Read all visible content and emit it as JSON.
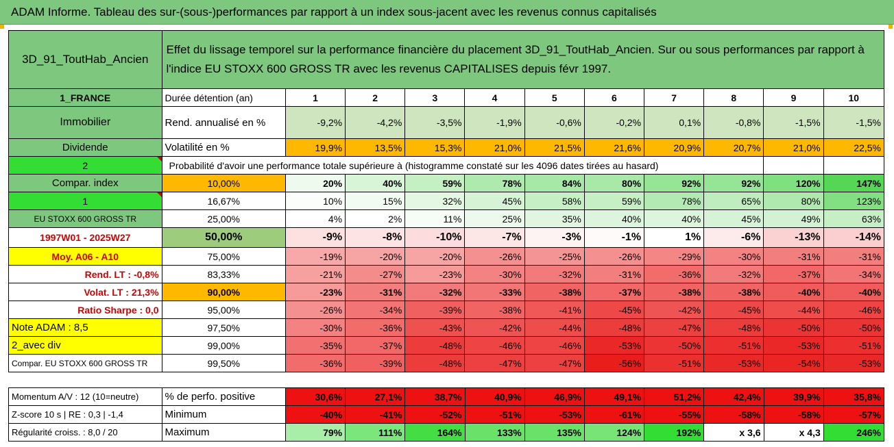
{
  "title": "ADAM Informe. Tableau des sur-(sous-)performances par rapport à un index sous-jacent avec les revenus connus capitalisés",
  "header": {
    "code": "3D_91_ToutHab_Ancien",
    "description": "Effet du lissage temporel sur la performance financière du placement 3D_91_ToutHab_Ancien. Sur ou sous performances par rapport à l'indice EU STOXX 600 GROSS TR avec les revenus CAPITALISES depuis févr 1997."
  },
  "left_labels": {
    "country": "1_FRANCE",
    "asset": "Immobilier",
    "dividend": "Dividende",
    "two": "2",
    "compar_index": "Compar. index",
    "one": "1",
    "index_name": "EU STOXX 600 GROSS TR",
    "period": "1997W01 - 2025W27",
    "moy": "Moy. A06 - A10",
    "rend_lt": "Rend. LT :    -0,8%",
    "volat_lt": "Volat. LT :    21,3%",
    "ratio_sharpe": "Ratio Sharpe :    0,0",
    "note_adam": "Note ADAM : 8,5",
    "avec_div": "2_avec div",
    "compar_name": "Compar. EU STOXX 600 GROSS TR"
  },
  "durations": {
    "label": "Durée détention (an)",
    "values": [
      "1",
      "2",
      "3",
      "4",
      "5",
      "6",
      "7",
      "8",
      "9",
      "10"
    ]
  },
  "rendement": {
    "label": "Rend. annualisé en %",
    "values": [
      "-9,2%",
      "-4,2%",
      "-3,5%",
      "-1,9%",
      "-0,6%",
      "-0,2%",
      "0,1%",
      "-0,8%",
      "-1,5%",
      "-1,5%"
    ]
  },
  "volatilite": {
    "label": "Volatilité en %",
    "values": [
      "19,9%",
      "13,5%",
      "15,3%",
      "21,0%",
      "21,5%",
      "21,6%",
      "20,9%",
      "20,7%",
      "21,0%",
      "22,5%"
    ]
  },
  "probability_caption": "Probabilité d'avoir une performance totale supérieure à (histogramme constaté sur les 4096 dates tirées au hasard)",
  "quantile_rows": [
    {
      "q": "10,00%",
      "values": [
        "20%",
        "40%",
        "59%",
        "78%",
        "84%",
        "80%",
        "92%",
        "92%",
        "120%",
        "147%"
      ],
      "colors": [
        "#eefaee",
        "#d8f5d8",
        "#c4f0c4",
        "#aeeaae",
        "#a6e8a6",
        "#a8e9a8",
        "#96e496",
        "#96e496",
        "#7ee07e",
        "#55d655"
      ]
    },
    {
      "q": "16,67%",
      "values": [
        "10%",
        "15%",
        "32%",
        "45%",
        "58%",
        "59%",
        "78%",
        "65%",
        "80%",
        "123%"
      ],
      "colors": [
        "#fbfdfb",
        "#f2fbf2",
        "#e3f7e3",
        "#d6f3d6",
        "#c6efc6",
        "#c6efc6",
        "#b3eab3",
        "#c0edc0",
        "#b0e9b0",
        "#82df82"
      ]
    },
    {
      "q": "25,00%",
      "values": [
        "4%",
        "2%",
        "11%",
        "25%",
        "35%",
        "40%",
        "40%",
        "45%",
        "49%",
        "63%"
      ],
      "colors": [
        "#ffffff",
        "#ffffff",
        "#f6fcf6",
        "#ecf9ec",
        "#e1f6e1",
        "#dcf5dc",
        "#dcf5dc",
        "#d7f3d7",
        "#d3f2d3",
        "#c6efc6"
      ]
    },
    {
      "q": "50,00%",
      "values": [
        "-9%",
        "-8%",
        "-10%",
        "-7%",
        "-3%",
        "-1%",
        "1%",
        "-6%",
        "-13%",
        "-14%"
      ],
      "colors": [
        "#fde0e0",
        "#fde3e3",
        "#fcdcdc",
        "#fde6e6",
        "#fef3f3",
        "#fffafa",
        "#ffffff",
        "#fdeaea",
        "#fbd2d2",
        "#fbcfcf"
      ]
    },
    {
      "q": "75,00%",
      "values": [
        "-19%",
        "-20%",
        "-20%",
        "-26%",
        "-25%",
        "-26%",
        "-29%",
        "-30%",
        "-31%",
        "-31%"
      ],
      "colors": [
        "#f7a8a8",
        "#f7a4a4",
        "#f7a4a4",
        "#f59090",
        "#f59494",
        "#f59090",
        "#f48686",
        "#f48282",
        "#f37e7e",
        "#f37e7e"
      ]
    },
    {
      "q": "83,33%",
      "values": [
        "-21%",
        "-27%",
        "-23%",
        "-30%",
        "-32%",
        "-31%",
        "-36%",
        "-32%",
        "-37%",
        "-34%"
      ],
      "colors": [
        "#f6a0a0",
        "#f58c8c",
        "#f69a9a",
        "#f48282",
        "#f37a7a",
        "#f37e7e",
        "#f26c6c",
        "#f37a7a",
        "#f26868",
        "#f27474"
      ]
    },
    {
      "q": "90,00%",
      "values": [
        "-23%",
        "-31%",
        "-32%",
        "-33%",
        "-38%",
        "-37%",
        "-38%",
        "-38%",
        "-40%",
        "-40%"
      ],
      "colors": [
        "#f69a9a",
        "#f37e7e",
        "#f37a7a",
        "#f27676",
        "#f16464",
        "#f26868",
        "#f16464",
        "#f16464",
        "#f05c5c",
        "#f05c5c"
      ]
    },
    {
      "q": "95,00%",
      "values": [
        "-26%",
        "-34%",
        "-39%",
        "-38%",
        "-41%",
        "-45%",
        "-42%",
        "-45%",
        "-44%",
        "-46%"
      ],
      "colors": [
        "#f59090",
        "#f27474",
        "#f06060",
        "#f16464",
        "#f05858",
        "#ee4848",
        "#ef5454",
        "#ee4848",
        "#ef4c4c",
        "#ee4444"
      ]
    },
    {
      "q": "97,50%",
      "values": [
        "-30%",
        "-36%",
        "-43%",
        "-42%",
        "-44%",
        "-48%",
        "-47%",
        "-48%",
        "-50%",
        "-50%"
      ],
      "colors": [
        "#f48282",
        "#f26c6c",
        "#ef5050",
        "#ef5454",
        "#ef4c4c",
        "#ed3c3c",
        "#ed4040",
        "#ed3c3c",
        "#ec3434",
        "#ec3434"
      ]
    },
    {
      "q": "99,00%",
      "values": [
        "-35%",
        "-37%",
        "-48%",
        "-46%",
        "-46%",
        "-53%",
        "-50%",
        "-51%",
        "-53%",
        "-51%"
      ],
      "colors": [
        "#f27070",
        "#f26868",
        "#ed3c3c",
        "#ee4444",
        "#ee4444",
        "#eb2828",
        "#ec3434",
        "#ec3030",
        "#eb2828",
        "#ec3030"
      ]
    },
    {
      "q": "99,50%",
      "values": [
        "-36%",
        "-39%",
        "-48%",
        "-47%",
        "-47%",
        "-56%",
        "-51%",
        "-53%",
        "-54%",
        "-53%"
      ],
      "colors": [
        "#f26c6c",
        "#f06060",
        "#ed3c3c",
        "#ed4040",
        "#ed4040",
        "#ea1c1c",
        "#ec3030",
        "#eb2828",
        "#eb2424",
        "#eb2828"
      ]
    }
  ],
  "footer_rows": [
    {
      "left": "Momentum A/V : 12 (10=neutre)",
      "label": "% de perfo. positive",
      "values": [
        "30,6%",
        "27,1%",
        "38,7%",
        "40,9%",
        "46,9%",
        "49,1%",
        "51,2%",
        "42,4%",
        "39,9%",
        "35,8%"
      ],
      "colors": [
        "#ee1111",
        "#ee1111",
        "#ee1111",
        "#ee1111",
        "#ee1111",
        "#ee1111",
        "#ee1111",
        "#ee1111",
        "#ee1111",
        "#ee1111"
      ]
    },
    {
      "left": "Z-score 10 s | RE : 0,3 | -1,4",
      "label": "Minimum",
      "values": [
        "-40%",
        "-41%",
        "-52%",
        "-51%",
        "-53%",
        "-61%",
        "-55%",
        "-58%",
        "-58%",
        "-57%"
      ],
      "colors": [
        "#ee1111",
        "#ee1111",
        "#ee1111",
        "#ee1111",
        "#ee1111",
        "#ee1111",
        "#ee1111",
        "#ee1111",
        "#ee1111",
        "#ee1111"
      ]
    },
    {
      "left": "Régularité croiss. : 8,0 / 20",
      "label": "Maximum",
      "values": [
        "79%",
        "111%",
        "164%",
        "133%",
        "135%",
        "124%",
        "192%",
        "x 3,6",
        "x 4,3",
        "246%"
      ],
      "colors": [
        "#a8eea8",
        "#7be67b",
        "#44dd44",
        "#6ae26a",
        "#6ae26a",
        "#78e478",
        "#33dd33",
        "#ffffff",
        "#ffffff",
        "#33dd33"
      ]
    }
  ]
}
